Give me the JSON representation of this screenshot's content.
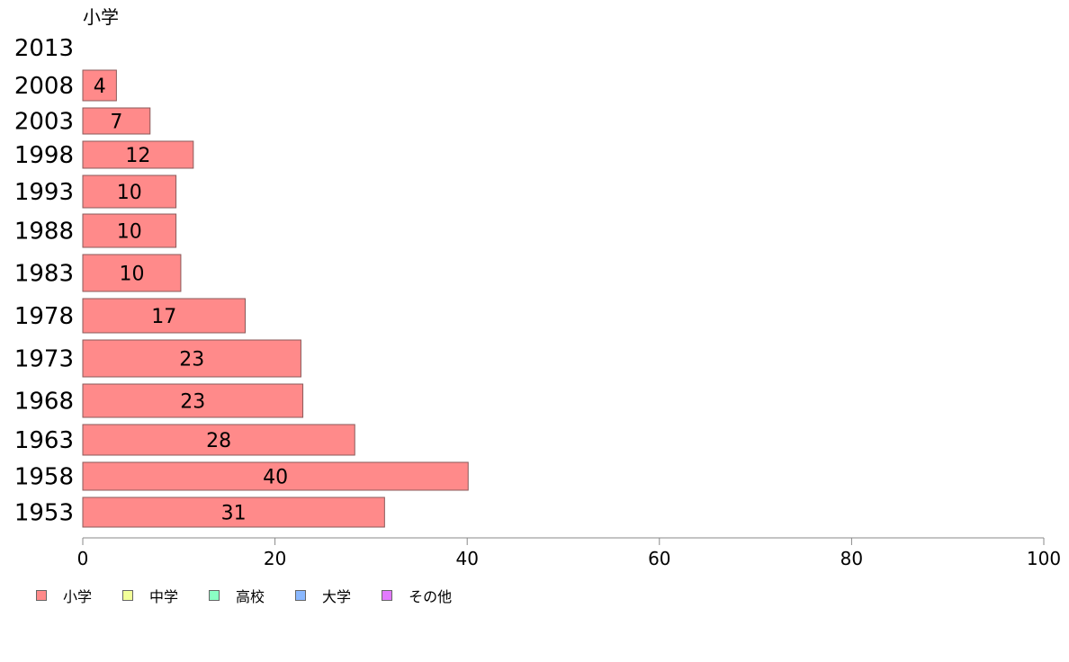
{
  "chart_data": {
    "type": "bar",
    "orientation": "horizontal",
    "series_label": "小学",
    "categories": [
      "2013",
      "2008",
      "2003",
      "1998",
      "1993",
      "1988",
      "1983",
      "1978",
      "1973",
      "1968",
      "1963",
      "1958",
      "1953"
    ],
    "values": [
      null,
      4,
      7,
      12,
      10,
      10,
      10,
      17,
      23,
      23,
      28,
      40,
      31
    ],
    "bar_lengths": [
      0,
      3.5,
      7,
      11.5,
      9.7,
      9.7,
      10.2,
      16.9,
      22.7,
      22.9,
      28.3,
      40.1,
      31.4
    ],
    "xlim": [
      0,
      100
    ],
    "xticks": [
      "0",
      "20",
      "40",
      "60",
      "80",
      "100"
    ],
    "bar_color": "#ff8a8a",
    "bar_stroke": "#8a5a5a",
    "axis_color": "#888888",
    "legend_position": "bottom-left",
    "legend": [
      {
        "label": "小学",
        "color": "#ff8a8a"
      },
      {
        "label": "中学",
        "color": "#f2ff99"
      },
      {
        "label": "高校",
        "color": "#8affc4"
      },
      {
        "label": "大学",
        "color": "#8ab8ff"
      },
      {
        "label": "その他",
        "color": "#e27aff"
      }
    ]
  }
}
